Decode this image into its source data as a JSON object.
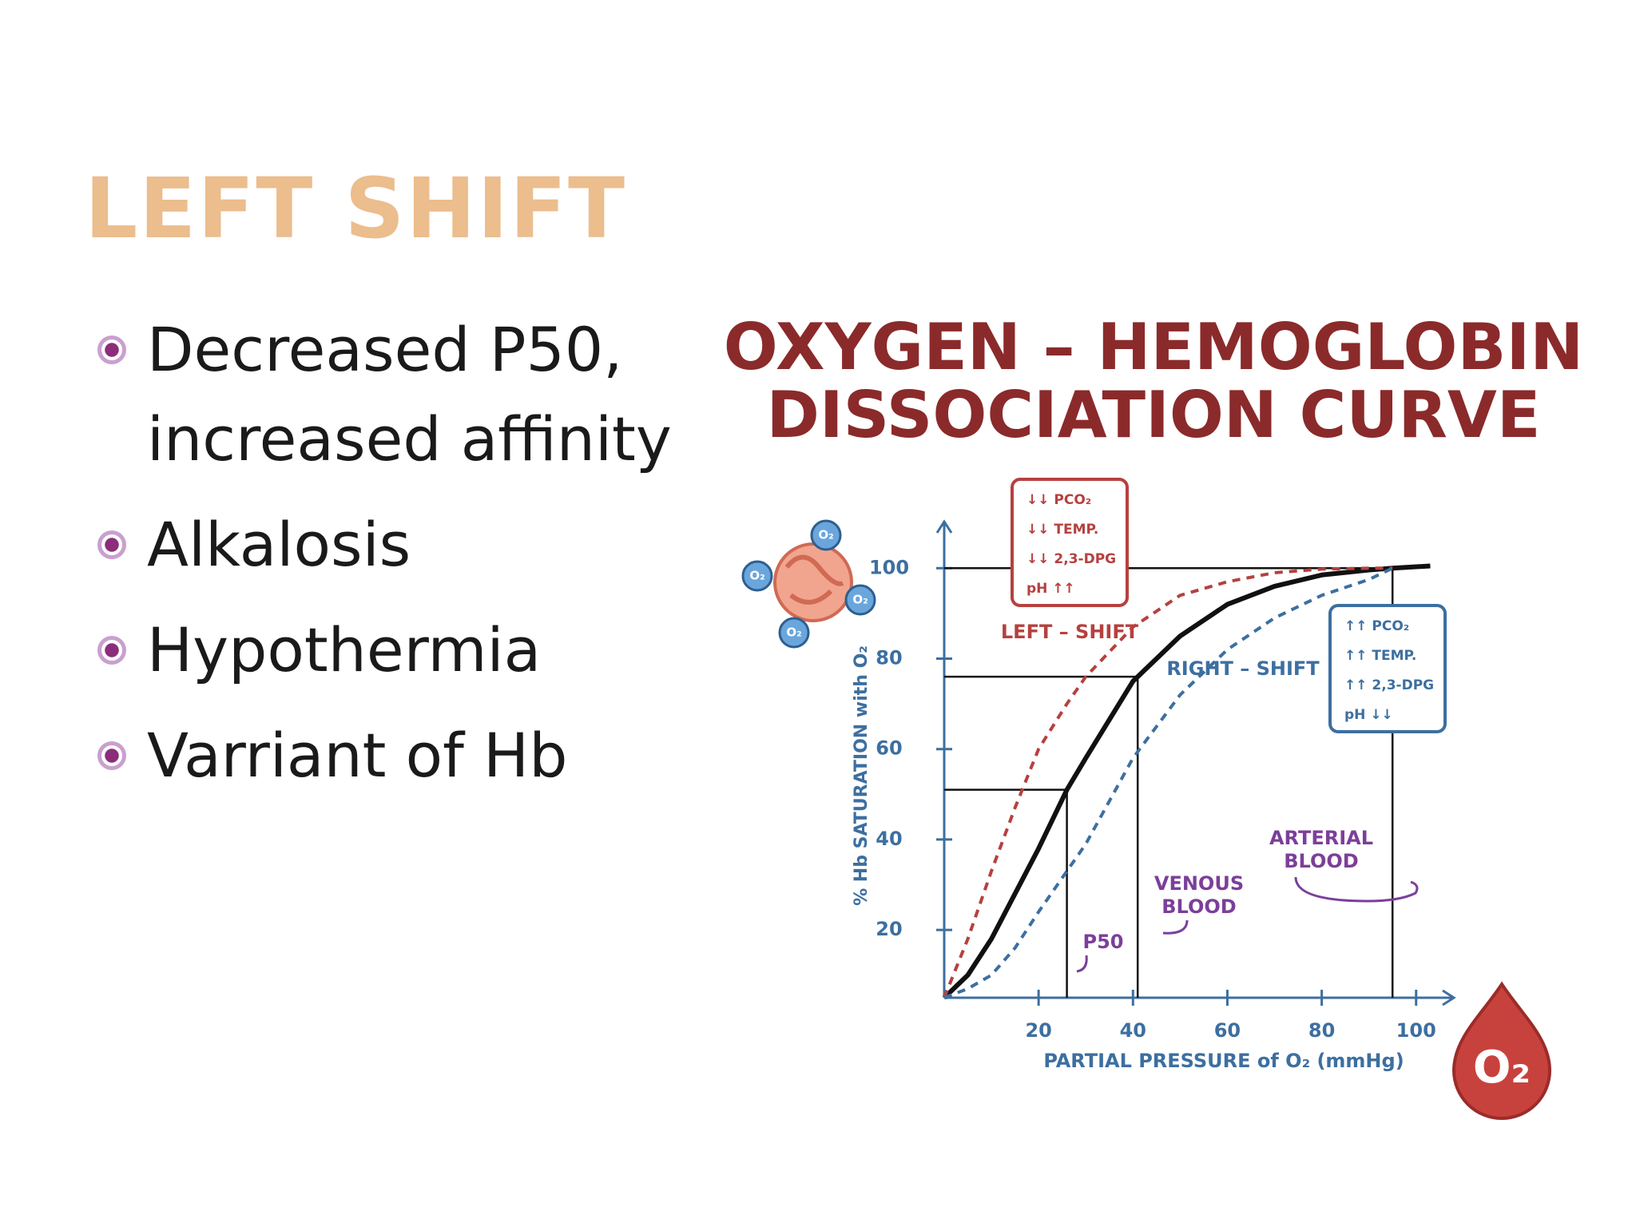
{
  "title": "LEFT SHIFT",
  "bullets": [
    "Decreased P50, increased affinity",
    "Alkalosis",
    "Hypothermia",
    "Varriant of Hb"
  ],
  "chart_data": {
    "type": "line",
    "title": [
      "OXYGEN – HEMOGLOBIN",
      "DISSOCIATION CURVE"
    ],
    "x_label": "PARTIAL PRESSURE of O₂ (mmHg)",
    "y_label": "% Hb SATURATION with O₂",
    "x": [
      0,
      5,
      10,
      15,
      20,
      26,
      30,
      40,
      50,
      60,
      70,
      80,
      90,
      95,
      103
    ],
    "series": [
      {
        "color": "#111111",
        "values": [
          5,
          10,
          18,
          28,
          38,
          51,
          58,
          75,
          85,
          92,
          96,
          98.5,
          99.6,
          100,
          100.5
        ]
      },
      {
        "name": "LEFT – SHIFT",
        "color": "#b5413f",
        "values": [
          5,
          18,
          33,
          47,
          60,
          70,
          76,
          87,
          94,
          97,
          99,
          99.8,
          100,
          100,
          null
        ]
      },
      {
        "name": "RIGHT – SHIFT",
        "color": "#3d6fa0",
        "values": [
          5,
          7,
          10,
          16,
          24,
          33,
          39,
          58,
          72,
          82,
          89,
          94,
          97.5,
          100,
          null
        ]
      }
    ],
    "xlim": [
      0,
      108
    ],
    "xticks": [
      20,
      40,
      60,
      80,
      100
    ],
    "ylim": [
      5,
      105
    ],
    "yticks": [
      20,
      40,
      60,
      80,
      100
    ],
    "reference_points": [
      [
        26,
        51
      ],
      [
        41,
        76
      ],
      [
        95,
        100
      ]
    ],
    "left_box": [
      "↓↓ PCO₂",
      "↓↓ TEMP.",
      "↓↓ 2,3-DPG",
      "pH ↑↑"
    ],
    "right_box": [
      "↑↑ PCO₂",
      "↑↑ TEMP.",
      "↑↑ 2,3-DPG",
      "pH ↓↓"
    ],
    "p50_label": "P50",
    "venous_label": [
      "VENOUS",
      "BLOOD"
    ],
    "arterial_label": [
      "ARTERIAL",
      "BLOOD"
    ],
    "oxygen_symbol": "O₂"
  }
}
